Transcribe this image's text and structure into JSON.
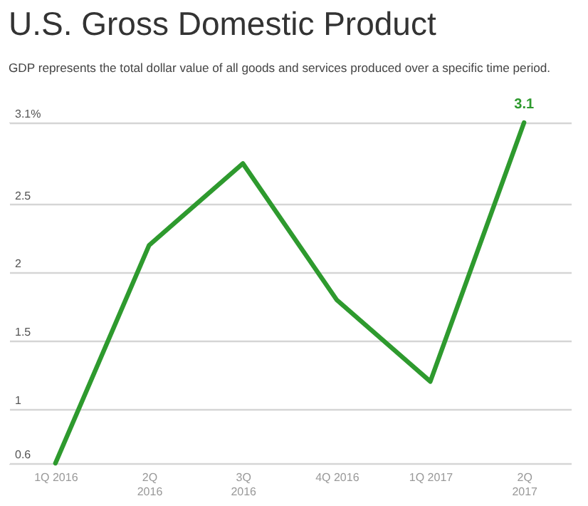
{
  "chart_data": {
    "type": "line",
    "title": "U.S. Gross Domestic Product",
    "subtitle": "GDP represents the total dollar value of all goods and services produced over a specific time period.",
    "categories": [
      "1Q 2016",
      "2Q\n2016",
      "3Q\n2016",
      "4Q 2016",
      "1Q 2017",
      "2Q\n2017"
    ],
    "series": [
      {
        "color": "#2e9a2e",
        "values": [
          0.6,
          2.2,
          2.8,
          1.8,
          1.2,
          3.1
        ],
        "value_labels": [
          null,
          null,
          null,
          null,
          null,
          "3.1"
        ]
      }
    ],
    "ylim": [
      0.6,
      3.1
    ],
    "yticks": [
      0.6,
      1,
      1.5,
      2,
      2.5,
      {
        "value": 3.1,
        "label": "3.1%"
      }
    ],
    "grid": "y",
    "marker": "none",
    "line_style": "solid"
  }
}
